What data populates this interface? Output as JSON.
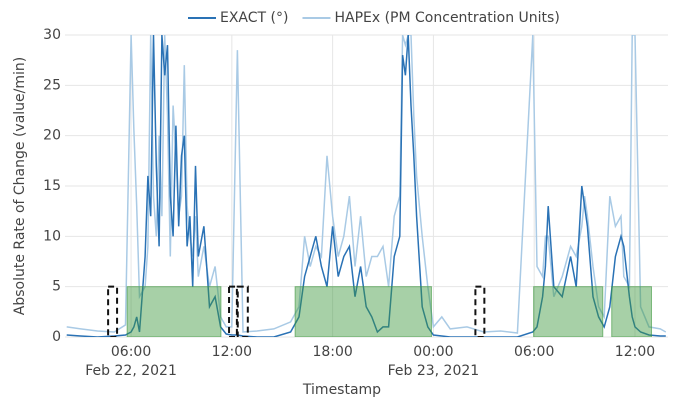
{
  "chart_data": {
    "type": "line",
    "x_label": "Timestamp",
    "y_label": "Absolute Rate of Change (value/min)",
    "x": [
      "2021-02-22 02:10",
      "2021-02-22 03:00",
      "2021-02-22 04:00",
      "2021-02-22 05:00",
      "2021-02-22 05:40",
      "2021-02-22 06:00",
      "2021-02-22 06:10",
      "2021-02-22 06:20",
      "2021-02-22 06:30",
      "2021-02-22 06:50",
      "2021-02-22 07:00",
      "2021-02-22 07:10",
      "2021-02-22 07:20",
      "2021-02-22 07:30",
      "2021-02-22 07:40",
      "2021-02-22 07:50",
      "2021-02-22 08:00",
      "2021-02-22 08:10",
      "2021-02-22 08:20",
      "2021-02-22 08:30",
      "2021-02-22 08:40",
      "2021-02-22 08:50",
      "2021-02-22 09:00",
      "2021-02-22 09:10",
      "2021-02-22 09:20",
      "2021-02-22 09:30",
      "2021-02-22 09:40",
      "2021-02-22 09:50",
      "2021-02-22 10:00",
      "2021-02-22 10:20",
      "2021-02-22 10:40",
      "2021-02-22 11:00",
      "2021-02-22 11:20",
      "2021-02-22 11:40",
      "2021-02-22 12:00",
      "2021-02-22 12:20",
      "2021-02-22 12:40",
      "2021-02-22 13:30",
      "2021-02-22 14:30",
      "2021-02-22 15:30",
      "2021-02-22 16:00",
      "2021-02-22 16:20",
      "2021-02-22 16:40",
      "2021-02-22 17:00",
      "2021-02-22 17:20",
      "2021-02-22 17:40",
      "2021-02-22 18:00",
      "2021-02-22 18:20",
      "2021-02-22 18:40",
      "2021-02-22 19:00",
      "2021-02-22 19:20",
      "2021-02-22 19:40",
      "2021-02-22 20:00",
      "2021-02-22 20:20",
      "2021-02-22 20:40",
      "2021-02-22 21:00",
      "2021-02-22 21:20",
      "2021-02-22 21:40",
      "2021-02-22 22:00",
      "2021-02-22 22:10",
      "2021-02-22 22:20",
      "2021-02-22 22:30",
      "2021-02-22 22:40",
      "2021-02-22 22:50",
      "2021-02-22 23:00",
      "2021-02-22 23:20",
      "2021-02-22 23:40",
      "2021-02-23 00:00",
      "2021-02-23 00:30",
      "2021-02-23 01:00",
      "2021-02-23 02:00",
      "2021-02-23 03:00",
      "2021-02-23 04:00",
      "2021-02-23 05:00",
      "2021-02-23 05:55",
      "2021-02-23 06:10",
      "2021-02-23 06:30",
      "2021-02-23 06:40",
      "2021-02-23 06:50",
      "2021-02-23 07:10",
      "2021-02-23 07:40",
      "2021-02-23 08:10",
      "2021-02-23 08:30",
      "2021-02-23 08:50",
      "2021-02-23 09:00",
      "2021-02-23 09:10",
      "2021-02-23 09:30",
      "2021-02-23 09:50",
      "2021-02-23 10:10",
      "2021-02-23 10:30",
      "2021-02-23 10:50",
      "2021-02-23 11:10",
      "2021-02-23 11:20",
      "2021-02-23 11:40",
      "2021-02-23 11:50",
      "2021-02-23 12:00",
      "2021-02-23 12:20",
      "2021-02-23 12:50",
      "2021-02-23 13:30",
      "2021-02-23 13:50"
    ],
    "series": [
      {
        "name": "EXACT (°)",
        "color": "#2a72b5",
        "values": [
          0.2,
          0.1,
          0,
          0.1,
          0.2,
          0.5,
          1,
          2,
          0.5,
          8,
          16,
          12,
          30,
          17,
          9,
          30,
          26,
          29,
          14,
          10,
          21,
          11,
          18,
          20,
          9,
          12,
          5,
          17,
          8,
          11,
          3,
          4,
          1,
          0.3,
          0.2,
          0.2,
          0.1,
          0,
          0,
          0.5,
          2,
          6,
          8,
          10,
          7,
          5,
          11,
          6,
          8,
          9,
          4,
          7,
          3,
          2,
          0.5,
          1,
          1,
          8,
          10,
          28,
          26,
          30,
          23,
          18,
          12,
          3,
          1,
          0.2,
          0.1,
          0,
          0,
          0,
          0,
          0,
          0.5,
          1,
          4,
          7,
          13,
          5,
          4,
          8,
          5,
          15,
          13,
          11,
          4,
          2,
          1,
          3,
          8,
          10,
          9,
          4,
          2,
          1,
          0.5,
          0.2,
          0.1,
          0.1
        ]
      },
      {
        "name": "HAPEx (PM Concentration Units)",
        "color": "#a9cae5",
        "values": [
          1,
          0.8,
          0.6,
          0.5,
          1.2,
          30,
          20.5,
          13,
          4,
          5,
          9,
          30,
          14,
          10,
          20,
          12,
          30,
          22,
          8,
          23,
          18,
          12,
          14,
          27,
          13,
          10,
          8,
          12,
          6,
          9,
          5,
          7,
          2,
          1,
          1,
          28.5,
          0.5,
          0.6,
          0.8,
          1.5,
          3,
          10,
          7,
          9,
          8,
          18,
          12,
          8,
          10,
          14,
          7,
          12,
          6,
          8,
          8,
          9,
          5,
          12,
          14,
          30,
          29,
          30,
          30,
          22,
          16,
          10,
          5,
          1,
          2,
          0.8,
          1,
          0.5,
          0.6,
          0.4,
          30,
          7,
          6,
          10,
          10,
          4,
          6,
          9,
          8,
          11,
          14,
          12,
          7,
          3,
          2,
          14,
          11,
          12,
          6,
          5,
          30,
          30,
          3,
          1,
          0.8,
          0.5
        ]
      }
    ],
    "shapes": [
      {
        "x0": "2021-02-22 05:46",
        "x1": "2021-02-22 11:21",
        "y0": 0,
        "y1": 5,
        "style": "filled"
      },
      {
        "x0": "2021-02-22 15:46",
        "x1": "2021-02-22 23:53",
        "y0": 0,
        "y1": 5,
        "style": "filled"
      },
      {
        "x0": "2021-02-23 05:58",
        "x1": "2021-02-23 10:05",
        "y0": 0,
        "y1": 5,
        "style": "filled"
      },
      {
        "x0": "2021-02-23 10:37",
        "x1": "2021-02-23 12:59",
        "y0": 0,
        "y1": 5,
        "style": "filled"
      },
      {
        "x0": "2021-02-22 04:38",
        "x1": "2021-02-22 05:10",
        "y0": 0,
        "y1": 5,
        "style": "dashed"
      },
      {
        "x0": "2021-02-22 11:50",
        "x1": "2021-02-22 12:18",
        "y0": 0,
        "y1": 5,
        "style": "dashed"
      },
      {
        "x0": "2021-02-22 12:21",
        "x1": "2021-02-22 12:57",
        "y0": 0,
        "y1": 5,
        "style": "dashed"
      },
      {
        "x0": "2021-02-23 02:30",
        "x1": "2021-02-23 03:02",
        "y0": 0,
        "y1": 5,
        "style": "dashed"
      }
    ],
    "xlim": [
      "2021-02-22 02:04",
      "2021-02-23 13:58"
    ],
    "xticks": [
      {
        "value": "2021-02-22 06:00",
        "label": "06:00",
        "date": "Feb 22, 2021"
      },
      {
        "value": "2021-02-22 12:00",
        "label": "12:00"
      },
      {
        "value": "2021-02-22 18:00",
        "label": "18:00"
      },
      {
        "value": "2021-02-23 00:00",
        "label": "00:00",
        "date": "Feb 23, 2021"
      },
      {
        "value": "2021-02-23 06:00",
        "label": "06:00"
      },
      {
        "value": "2021-02-23 12:00",
        "label": "12:00"
      }
    ],
    "ylim": [
      0,
      30
    ],
    "yticks": [
      0,
      5,
      10,
      15,
      20,
      25,
      30
    ],
    "grid": true
  }
}
